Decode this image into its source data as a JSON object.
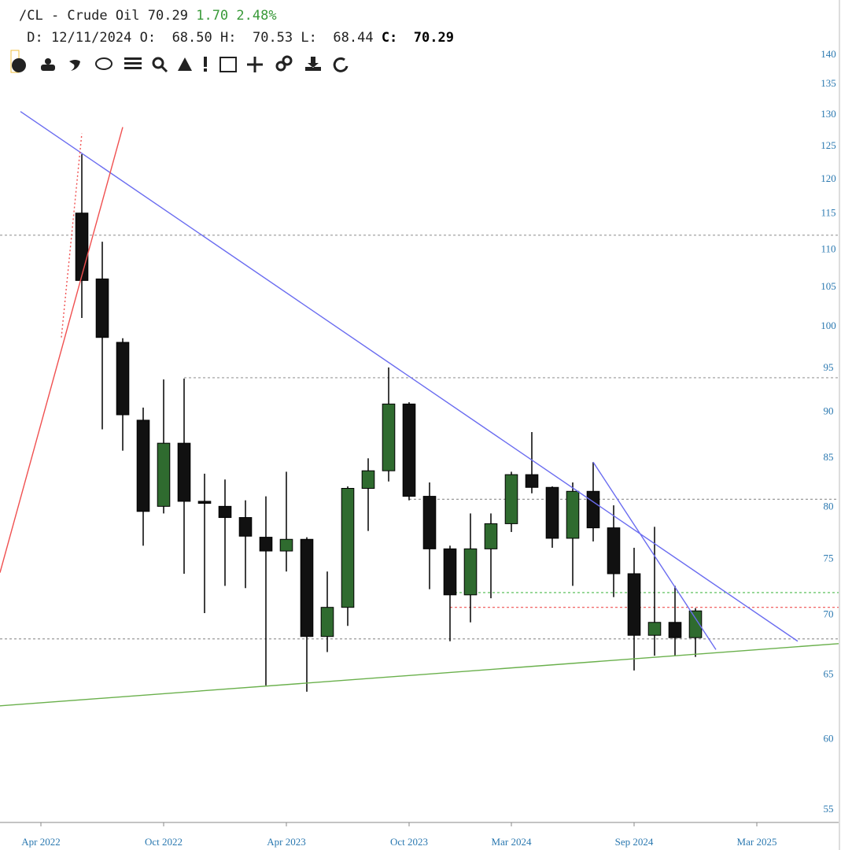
{
  "header": {
    "symbol": "/CL - Crude Oil",
    "last": "70.29",
    "change": "1.70",
    "change_pct": "2.48%",
    "date_label": "D:",
    "date": "12/11/2024",
    "open_label": "O:",
    "open": "68.50",
    "high_label": "H:",
    "high": "70.53",
    "low_label": "L:",
    "low": "68.44",
    "close_label": "C:",
    "close": "70.29"
  },
  "chart_data": {
    "type": "candlestick",
    "log_scale": true,
    "up_color": "#2f6b2f",
    "down_color": "#111111",
    "x": [
      "2022-06",
      "2022-07",
      "2022-08",
      "2022-09",
      "2022-10",
      "2022-11",
      "2022-12",
      "2023-01",
      "2023-02",
      "2023-03",
      "2023-04",
      "2023-05",
      "2023-06",
      "2023-07",
      "2023-08",
      "2023-09",
      "2023-10",
      "2023-11",
      "2023-12",
      "2024-01",
      "2024-02",
      "2024-03",
      "2024-04",
      "2024-05",
      "2024-06",
      "2024-07",
      "2024-08",
      "2024-09",
      "2024-10",
      "2024-11",
      "2024-12"
    ],
    "ohlc": [
      [
        115,
        123.7,
        101,
        105.8
      ],
      [
        106,
        111,
        88,
        98.6
      ],
      [
        98,
        98.5,
        85.7,
        89.6
      ],
      [
        89,
        90.4,
        76.2,
        79.5
      ],
      [
        80,
        93.6,
        79.3,
        86.5
      ],
      [
        86.5,
        93.7,
        73.6,
        80.5
      ],
      [
        80.5,
        83.3,
        70.1,
        80.3
      ],
      [
        80,
        82.7,
        72.5,
        78.9
      ],
      [
        78.9,
        80.6,
        72.3,
        77.1
      ],
      [
        77,
        81,
        64.1,
        75.7
      ],
      [
        75.7,
        83.5,
        73.8,
        76.8
      ],
      [
        76.8,
        77,
        63.6,
        68.1
      ],
      [
        68.1,
        73.8,
        66.8,
        70.6
      ],
      [
        70.6,
        82,
        69,
        81.8
      ],
      [
        81.8,
        84.9,
        77.6,
        83.6
      ],
      [
        83.6,
        95,
        82.5,
        90.8
      ],
      [
        90.8,
        91,
        80.6,
        81
      ],
      [
        81,
        82.4,
        72.2,
        75.9
      ],
      [
        75.9,
        76.2,
        67.7,
        71.7
      ],
      [
        71.7,
        79.3,
        69.3,
        75.9
      ],
      [
        75.9,
        79.3,
        71.4,
        78.3
      ],
      [
        78.3,
        83.5,
        77.5,
        83.2
      ],
      [
        83.2,
        87.7,
        81.3,
        81.9
      ],
      [
        81.9,
        82,
        76,
        76.9
      ],
      [
        76.9,
        82.4,
        72.5,
        81.5
      ],
      [
        81.5,
        84.5,
        76.6,
        77.9
      ],
      [
        77.9,
        80.1,
        71.5,
        73.6
      ],
      [
        73.6,
        76,
        65.3,
        68.2
      ],
      [
        68.2,
        78,
        66.5,
        69.3
      ],
      [
        69.3,
        72.5,
        66.5,
        68
      ],
      [
        68,
        70.53,
        66.4,
        70.29
      ]
    ],
    "xlim": [
      "2022-02",
      "2025-06"
    ],
    "xticks": [
      {
        "value": "2022-04",
        "label": "Apr 2022"
      },
      {
        "value": "2022-10",
        "label": "Oct 2022"
      },
      {
        "value": "2023-04",
        "label": "Apr 2023"
      },
      {
        "value": "2023-10",
        "label": "Oct 2023"
      },
      {
        "value": "2024-03",
        "label": "Mar 2024"
      },
      {
        "value": "2024-09",
        "label": "Sep 2024"
      },
      {
        "value": "2025-03",
        "label": "Mar 2025"
      }
    ],
    "ylim": [
      54.1,
      149.7
    ],
    "yticks": [
      55,
      60,
      65,
      70,
      75,
      80,
      85,
      90,
      95,
      100,
      105,
      110,
      115,
      120,
      125,
      130,
      135,
      140
    ],
    "trendlines": [
      {
        "color": "#6a6cf0",
        "dashed": false,
        "points": [
          [
            "2022-03",
            130.4
          ],
          [
            "2025-05",
            67.7
          ]
        ]
      },
      {
        "color": "#6a6cf0",
        "dashed": false,
        "points": [
          [
            "2024-07",
            84.5
          ],
          [
            "2025-01",
            67
          ]
        ]
      },
      {
        "color": "#6ab04c",
        "dashed": false,
        "points": [
          [
            "2022-02",
            62.5
          ],
          [
            "2025-07",
            67.5
          ]
        ]
      },
      {
        "color": "#f05050",
        "dashed": false,
        "points": [
          [
            "2022-02",
            73.7
          ],
          [
            "2022-08",
            127.9
          ]
        ]
      },
      {
        "color": "#f05050",
        "dashed": true,
        "points": [
          [
            "2022-05",
            98.6
          ],
          [
            "2022-06",
            126.9
          ]
        ]
      }
    ],
    "hlines": [
      {
        "value": 111.9,
        "color": "#999999"
      },
      {
        "value": 93.8,
        "color": "#999999",
        "start": "2022-11"
      },
      {
        "value": 80.7,
        "color": "#999999",
        "start": "2023-10"
      },
      {
        "value": 71.9,
        "color": "#4cbb4c",
        "start": "2023-12"
      },
      {
        "value": 70.6,
        "color": "#f05050",
        "start": "2023-12"
      },
      {
        "value": 67.9,
        "color": "#999999"
      }
    ]
  }
}
